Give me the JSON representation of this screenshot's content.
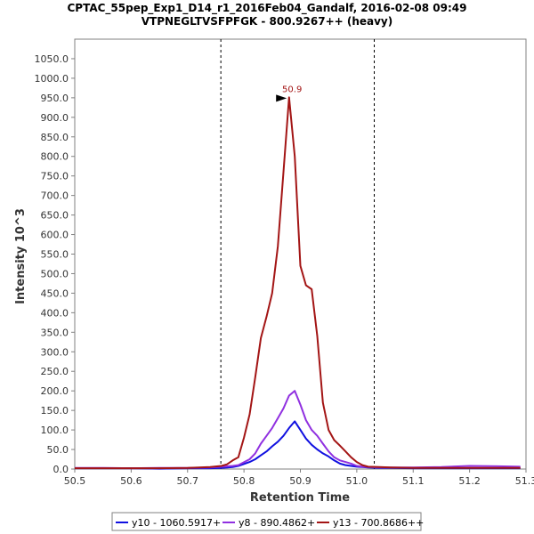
{
  "chart_data": {
    "type": "line",
    "title": "CPTAC_55pep_Exp1_D14_r1_2016Feb04_Gandalf, 2016-02-08 09:49",
    "subtitle": "VTPNEGLTVSFPFGK - 800.9267++ (heavy)",
    "xlabel": "Retention Time",
    "ylabel": "Intensity 10^3",
    "xlim": [
      50.5,
      51.3
    ],
    "ylim": [
      0,
      1100
    ],
    "x_ticks": [
      50.5,
      50.6,
      50.7,
      50.8,
      50.9,
      51.0,
      51.1,
      51.2,
      51.3
    ],
    "x_tick_labels": [
      "50.5",
      "50.6",
      "50.7",
      "50.8",
      "50.9",
      "51.0",
      "51.1",
      "51.2",
      "51.3"
    ],
    "y_ticks": [
      0,
      50,
      100,
      150,
      200,
      250,
      300,
      350,
      400,
      450,
      500,
      550,
      600,
      650,
      700,
      750,
      800,
      850,
      900,
      950,
      1000,
      1050
    ],
    "y_tick_labels": [
      "0.0",
      "50.0",
      "100.0",
      "150.0",
      "200.0",
      "250.0",
      "300.0",
      "350.0",
      "400.0",
      "450.0",
      "500.0",
      "550.0",
      "600.0",
      "650.0",
      "700.0",
      "750.0",
      "800.0",
      "850.0",
      "900.0",
      "950.0",
      "1000.0",
      "1050.0"
    ],
    "boundaries": [
      50.759,
      51.031
    ],
    "peak_annotation": {
      "label": "50.9",
      "x": 50.879,
      "y": 951,
      "color": "#a31515"
    },
    "series": [
      {
        "name": "y10 - 1060.5917+",
        "color": "#1010e0",
        "x": [
          50.5,
          50.55,
          50.6,
          50.65,
          50.7,
          50.74,
          50.76,
          50.78,
          50.79,
          50.81,
          50.82,
          50.83,
          50.84,
          50.85,
          50.86,
          50.87,
          50.88,
          50.89,
          50.9,
          50.91,
          50.92,
          50.93,
          50.94,
          50.95,
          50.96,
          50.97,
          50.98,
          50.99,
          51.0,
          51.01,
          51.02,
          51.04,
          51.06,
          51.1,
          51.15,
          51.2,
          51.25,
          51.29
        ],
        "y": [
          2,
          2,
          2,
          1,
          2,
          2,
          3,
          5,
          8,
          18,
          25,
          35,
          45,
          58,
          70,
          85,
          105,
          122,
          100,
          78,
          62,
          50,
          40,
          32,
          22,
          14,
          10,
          8,
          6,
          5,
          4,
          3,
          3,
          2,
          2,
          2,
          2,
          2
        ]
      },
      {
        "name": "y8 - 890.4862+",
        "color": "#9030e0",
        "x": [
          50.5,
          50.55,
          50.6,
          50.65,
          50.7,
          50.74,
          50.76,
          50.78,
          50.79,
          50.81,
          50.82,
          50.83,
          50.84,
          50.85,
          50.86,
          50.87,
          50.88,
          50.89,
          50.9,
          50.91,
          50.92,
          50.93,
          50.94,
          50.95,
          50.96,
          50.97,
          50.98,
          50.99,
          51.0,
          51.01,
          51.02,
          51.04,
          51.06,
          51.1,
          51.15,
          51.2,
          51.25,
          51.29
        ],
        "y": [
          3,
          3,
          2,
          3,
          3,
          4,
          6,
          8,
          10,
          25,
          40,
          65,
          85,
          105,
          130,
          155,
          188,
          200,
          165,
          125,
          100,
          85,
          65,
          45,
          30,
          22,
          18,
          14,
          8,
          6,
          5,
          4,
          4,
          4,
          5,
          8,
          7,
          6
        ]
      },
      {
        "name": "y13 - 700.8686++",
        "color": "#a31515",
        "x": [
          50.5,
          50.55,
          50.6,
          50.65,
          50.7,
          50.74,
          50.76,
          50.77,
          50.78,
          50.79,
          50.8,
          50.81,
          50.82,
          50.83,
          50.84,
          50.85,
          50.86,
          50.87,
          50.88,
          50.89,
          50.9,
          50.91,
          50.92,
          50.93,
          50.94,
          50.95,
          50.96,
          50.97,
          50.98,
          50.99,
          51.0,
          51.01,
          51.02,
          51.04,
          51.06,
          51.1,
          51.15,
          51.2,
          51.25,
          51.29
        ],
        "y": [
          2,
          2,
          2,
          2,
          3,
          5,
          8,
          12,
          22,
          30,
          80,
          140,
          235,
          335,
          390,
          450,
          570,
          760,
          951,
          800,
          520,
          470,
          460,
          340,
          170,
          100,
          74,
          60,
          45,
          30,
          18,
          10,
          6,
          5,
          4,
          3,
          3,
          3,
          3,
          3
        ]
      }
    ]
  }
}
